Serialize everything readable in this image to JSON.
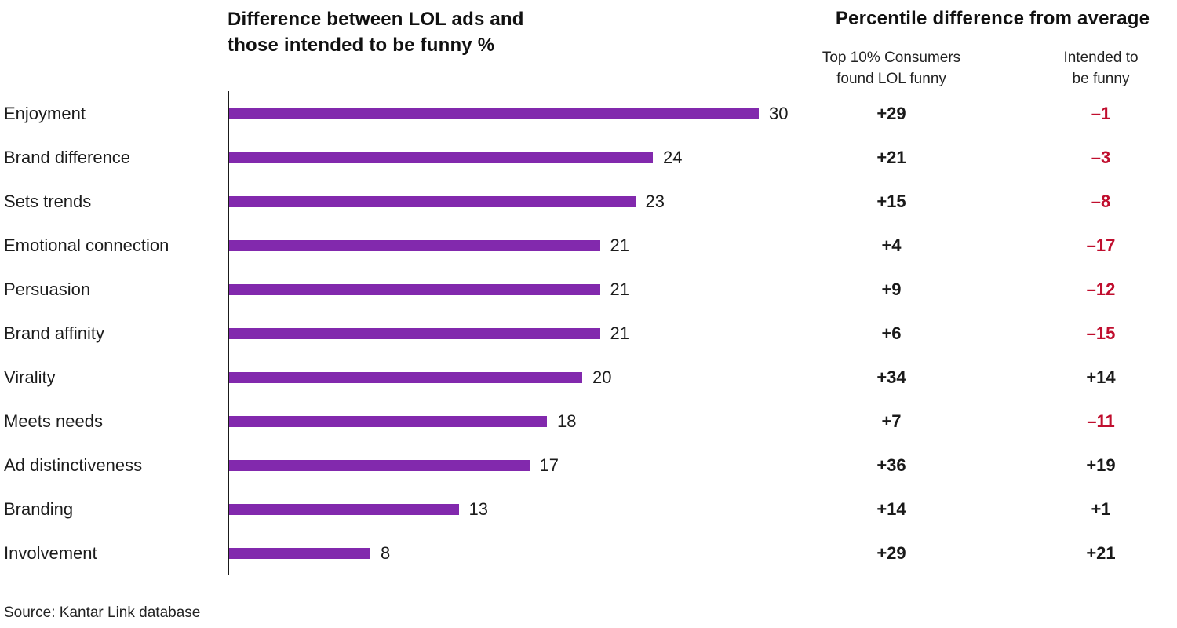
{
  "chart_data": {
    "type": "bar",
    "title_left_lines": [
      "Difference between LOL ads and",
      "those intended to be funny %"
    ],
    "title_right": "Percentile difference from average",
    "column_headers": [
      [
        "Top 10% Consumers",
        "found LOL funny"
      ],
      [
        "Intended to",
        "be funny"
      ]
    ],
    "categories": [
      "Enjoyment",
      "Brand difference",
      "Sets trends",
      "Emotional connection",
      "Persuasion",
      "Brand affinity",
      "Virality",
      "Meets needs",
      "Ad distinctiveness",
      "Branding",
      "Involvement"
    ],
    "bar_values": [
      30,
      24,
      23,
      21,
      21,
      21,
      20,
      18,
      17,
      13,
      8
    ],
    "series": [
      {
        "name": "Top 10% Consumers found LOL funny",
        "values": [
          29,
          21,
          15,
          4,
          9,
          6,
          34,
          7,
          36,
          14,
          29
        ]
      },
      {
        "name": "Intended to be funny",
        "values": [
          -1,
          -3,
          -8,
          -17,
          -12,
          -15,
          14,
          -11,
          19,
          1,
          21
        ]
      }
    ],
    "xlim": [
      0,
      32
    ],
    "legend": "none",
    "grid": "off",
    "source": "Source: Kantar Link database",
    "colors": {
      "bar": "#8229AD",
      "positive_text": "#1A1A1A",
      "negative_text": "#C00E2E",
      "axis": "#1A1A1A"
    }
  }
}
